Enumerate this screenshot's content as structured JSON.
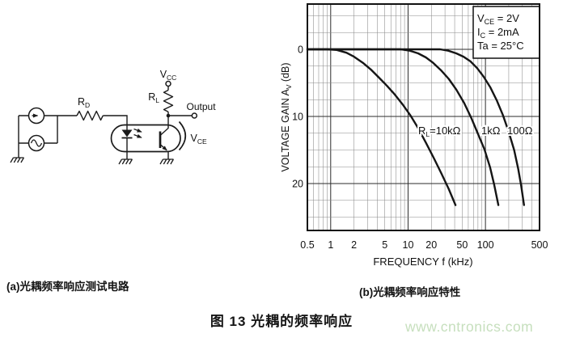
{
  "figure": {
    "caption_a": "(a)光耦频率响应测试电路",
    "caption_b": "(b)光耦频率响应特性",
    "title": "图 13 光耦的频率响应",
    "watermark": "www.cntronics.com"
  },
  "circuit": {
    "components": [
      "dc-current-source",
      "ac-signal-source",
      "resistor RD",
      "optocoupler (LED + phototransistor)",
      "load resistor RL",
      "ground x3"
    ],
    "labels": {
      "rd": {
        "pre": "R",
        "sub": "D"
      },
      "rl": {
        "pre": "R",
        "sub": "L"
      },
      "vcc": {
        "pre": "V",
        "sub": "CC"
      },
      "vce": {
        "pre": "V",
        "sub": "CE"
      },
      "output": "Output"
    }
  },
  "chart_data": {
    "type": "line",
    "title": "",
    "xlabel": "FREQUENCY f (kHz)",
    "ylabel": "VOLTAGE GAIN AV (dB)",
    "ylabel_parts": {
      "pre": "VOLTAGE GAIN A",
      "sub": "V",
      "post": " (dB)"
    },
    "x_scale": "log",
    "xlim": [
      0.5,
      500
    ],
    "ylim_db": [
      -27,
      6.7
    ],
    "grid": "log minor x; 2.5 dB minor y; majors at 1/10/100 kHz and 0/10/20 dB",
    "legend_position": "on-curve labels",
    "x_ticks": [
      {
        "label": "0.5",
        "value": 0.5
      },
      {
        "label": "1",
        "value": 1
      },
      {
        "label": "2",
        "value": 2
      },
      {
        "label": "5",
        "value": 5
      },
      {
        "label": "10",
        "value": 10
      },
      {
        "label": "20",
        "value": 20
      },
      {
        "label": "50",
        "value": 50
      },
      {
        "label": "100",
        "value": 100
      },
      {
        "label": "500",
        "value": 500
      }
    ],
    "y_ticks": [
      {
        "label": "0",
        "value": 0
      },
      {
        "label": "10",
        "value": -10
      },
      {
        "label": "20",
        "value": -20
      }
    ],
    "annotations": [
      "VCE = 2V",
      "IC = 2mA",
      "Ta = 25°C"
    ],
    "annotation_parts": [
      {
        "pre": "V",
        "sub": "CE",
        "post": " = 2V"
      },
      {
        "pre": "I",
        "sub": "C",
        "post": " = 2mA"
      },
      {
        "pre": "Ta = 25°C",
        "sub": "",
        "post": ""
      }
    ],
    "series": [
      {
        "name": "RL=10kΩ",
        "label_parts": {
          "pre": "R",
          "sub": "L",
          "post": "=10kΩ"
        },
        "points": [
          [
            0.5,
            0
          ],
          [
            0.9,
            0
          ],
          [
            1.2,
            -0.1
          ],
          [
            1.6,
            -0.5
          ],
          [
            2,
            -1.1
          ],
          [
            2.6,
            -2
          ],
          [
            3.3,
            -3
          ],
          [
            4.2,
            -4.2
          ],
          [
            5.3,
            -5.4
          ],
          [
            6.7,
            -6.7
          ],
          [
            8.5,
            -8.2
          ],
          [
            10.8,
            -9.9
          ],
          [
            13.6,
            -11.8
          ],
          [
            17,
            -13.9
          ],
          [
            21.5,
            -16.2
          ],
          [
            27,
            -18.5
          ],
          [
            33.5,
            -20.8
          ],
          [
            41,
            -23.2
          ]
        ]
      },
      {
        "name": "RL=1kΩ",
        "label": "1kΩ",
        "points": [
          [
            0.5,
            0
          ],
          [
            8,
            0
          ],
          [
            10.5,
            -0.2
          ],
          [
            13.5,
            -0.6
          ],
          [
            17,
            -1.2
          ],
          [
            21,
            -2
          ],
          [
            26.5,
            -3.1
          ],
          [
            33.5,
            -4.4
          ],
          [
            42,
            -6
          ],
          [
            53,
            -8
          ],
          [
            66,
            -10.3
          ],
          [
            80,
            -12.6
          ],
          [
            97,
            -14.9
          ],
          [
            115,
            -17.6
          ],
          [
            130,
            -20.2
          ],
          [
            147,
            -23.2
          ]
        ]
      },
      {
        "name": "RL=100Ω",
        "label": "100Ω",
        "points": [
          [
            0.5,
            0
          ],
          [
            26,
            0
          ],
          [
            33,
            -0.2
          ],
          [
            42,
            -0.6
          ],
          [
            52,
            -1.1
          ],
          [
            64,
            -1.8
          ],
          [
            78,
            -2.8
          ],
          [
            95,
            -4.1
          ],
          [
            116,
            -5.7
          ],
          [
            140,
            -7.6
          ],
          [
            168,
            -9.8
          ],
          [
            200,
            -12.3
          ],
          [
            235,
            -15
          ],
          [
            265,
            -17.8
          ],
          [
            290,
            -20.4
          ],
          [
            315,
            -23.2
          ]
        ]
      }
    ]
  }
}
